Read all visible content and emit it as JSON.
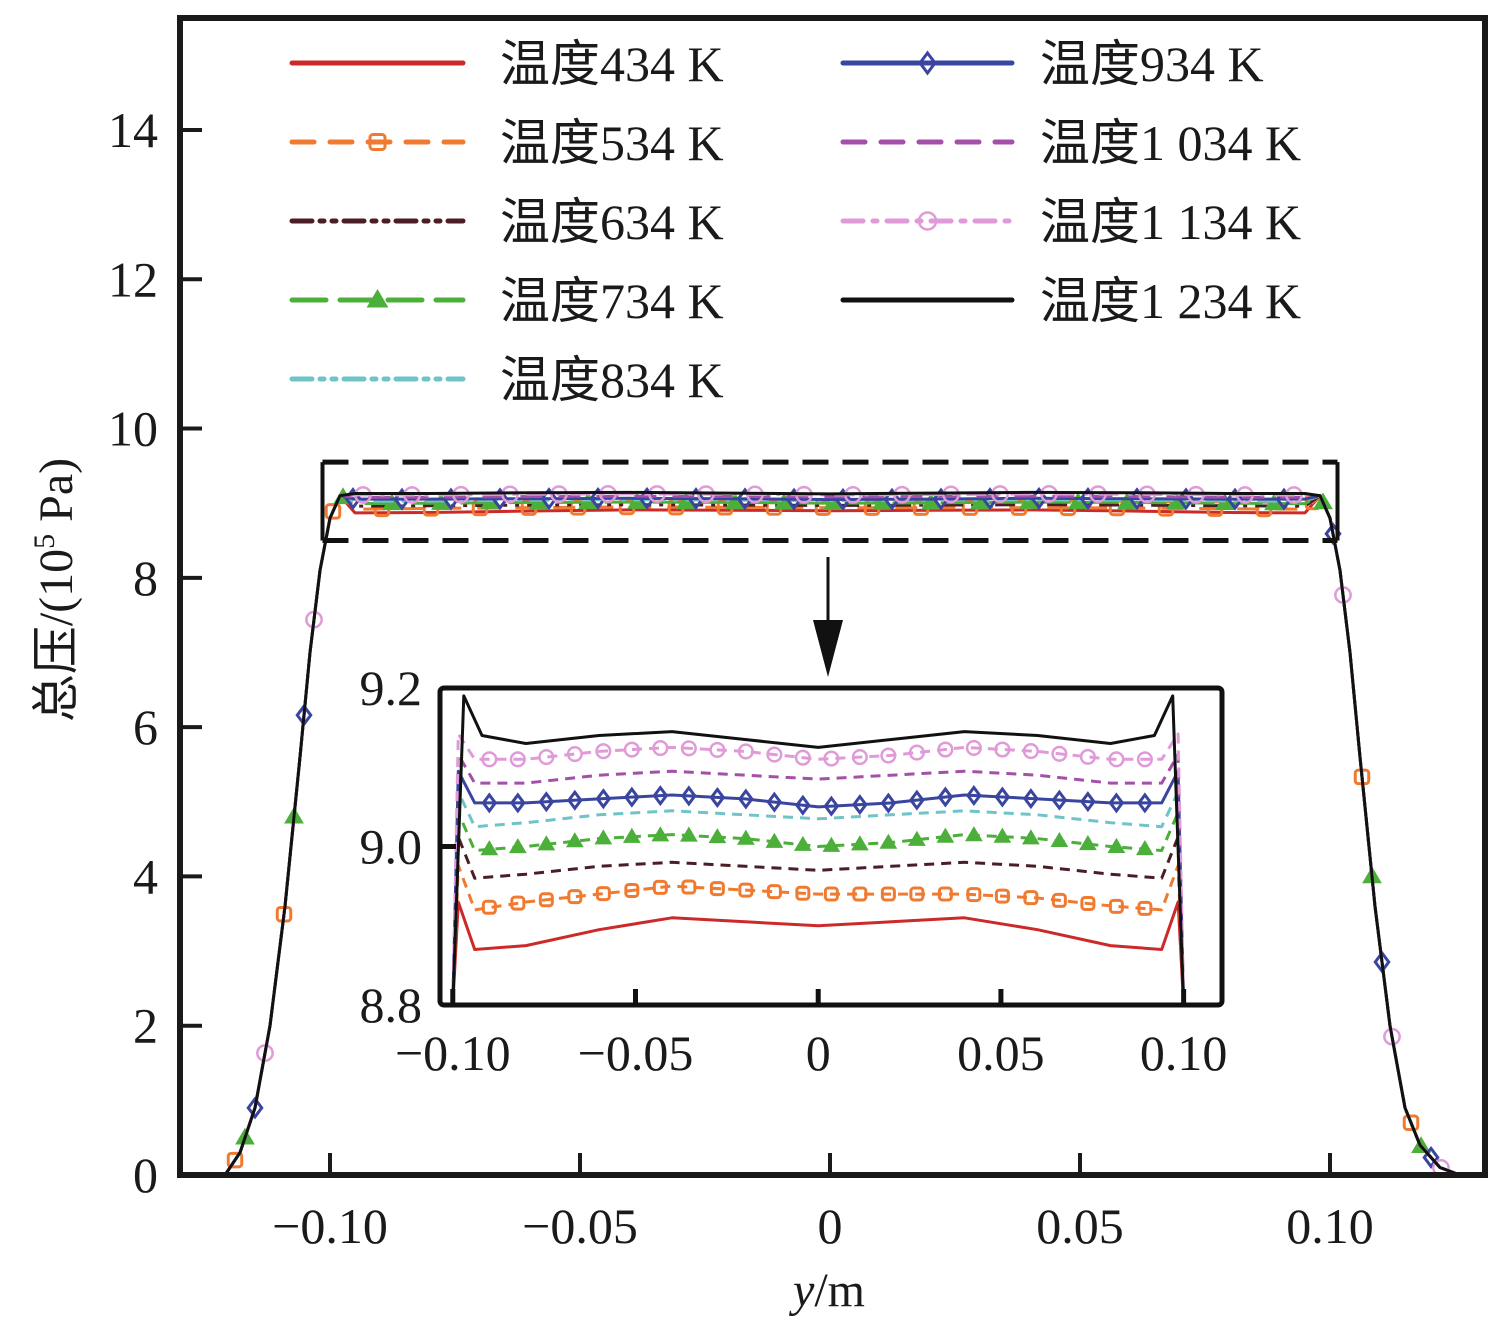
{
  "chart_data": {
    "type": "line",
    "title": "",
    "xlabel": "y/m",
    "xlabel_var": "y",
    "xlabel_unit": "/m",
    "ylabel": "总压/(10⁵ Pa)",
    "ylabel_prefix": "总压/(10",
    "ylabel_sup": "5",
    "ylabel_suffix": " Pa)",
    "xlim": [
      -0.13,
      0.131
    ],
    "ylim": [
      0,
      15.5
    ],
    "xticks": [
      -0.1,
      -0.05,
      0,
      0.05,
      0.1
    ],
    "xtick_labels": [
      "−0.10",
      "−0.05",
      "0",
      "0.05",
      "0.10"
    ],
    "yticks": [
      0,
      2,
      4,
      6,
      8,
      10,
      12,
      14
    ],
    "ytick_labels": [
      "0",
      "2",
      "4",
      "6",
      "8",
      "10",
      "12",
      "14"
    ],
    "grid": false,
    "legend_position": "top",
    "legend_columns": 2,
    "profile_shape": {
      "edge_x": [
        -0.121,
        -0.118,
        -0.115,
        -0.112,
        -0.109,
        -0.106,
        -0.104,
        -0.102,
        -0.1,
        -0.098
      ],
      "edge_y": [
        0.0,
        0.3,
        0.9,
        2.0,
        3.6,
        5.6,
        7.0,
        8.1,
        8.8,
        9.1
      ],
      "right_edge_x": [
        0.098,
        0.1,
        0.102,
        0.104,
        0.106,
        0.109,
        0.112,
        0.115,
        0.118,
        0.122,
        0.126
      ],
      "right_edge_y": [
        9.1,
        8.8,
        8.1,
        7.0,
        5.6,
        3.6,
        2.0,
        0.9,
        0.4,
        0.1,
        0.0
      ]
    },
    "series": [
      {
        "name": "温度434 K",
        "color": "#cc2a2a",
        "style": "solid",
        "marker": "none",
        "plateau_x": [
          -0.095,
          -0.08,
          -0.06,
          -0.04,
          -0.02,
          0,
          0.02,
          0.04,
          0.06,
          0.08,
          0.095
        ],
        "plateau_y": [
          8.87,
          8.875,
          8.895,
          8.91,
          8.905,
          8.9,
          8.905,
          8.91,
          8.895,
          8.875,
          8.87
        ]
      },
      {
        "name": "温度534 K",
        "color": "#f07a30",
        "style": "dash",
        "marker": "square-open",
        "plateau_x": [
          -0.095,
          -0.08,
          -0.06,
          -0.04,
          -0.02,
          0,
          0.02,
          0.04,
          0.06,
          0.08,
          0.095
        ],
        "plateau_y": [
          8.92,
          8.93,
          8.94,
          8.95,
          8.945,
          8.94,
          8.94,
          8.94,
          8.935,
          8.925,
          8.92
        ]
      },
      {
        "name": "温度634 K",
        "color": "#4a1e24",
        "style": "dashdotdot",
        "marker": "none",
        "plateau_x": [
          -0.095,
          -0.08,
          -0.06,
          -0.04,
          -0.02,
          0,
          0.02,
          0.04,
          0.06,
          0.08,
          0.095
        ],
        "plateau_y": [
          8.96,
          8.965,
          8.975,
          8.98,
          8.975,
          8.97,
          8.975,
          8.98,
          8.975,
          8.965,
          8.96
        ]
      },
      {
        "name": "温度734 K",
        "color": "#4caf3a",
        "style": "longdash",
        "marker": "triangle",
        "plateau_x": [
          -0.095,
          -0.08,
          -0.06,
          -0.04,
          -0.02,
          0,
          0.02,
          0.04,
          0.06,
          0.08,
          0.095
        ],
        "plateau_y": [
          8.995,
          9.0,
          9.01,
          9.015,
          9.01,
          9.0,
          9.005,
          9.015,
          9.01,
          9.0,
          8.995
        ]
      },
      {
        "name": "温度834 K",
        "color": "#6ec4c8",
        "style": "dashdotdot",
        "marker": "none",
        "plateau_x": [
          -0.095,
          -0.08,
          -0.06,
          -0.04,
          -0.02,
          0,
          0.02,
          0.04,
          0.06,
          0.08,
          0.095
        ],
        "plateau_y": [
          9.025,
          9.03,
          9.04,
          9.045,
          9.04,
          9.035,
          9.04,
          9.045,
          9.04,
          9.03,
          9.025
        ]
      },
      {
        "name": "温度934 K",
        "color": "#3a45a0",
        "style": "solid",
        "marker": "diamond-open",
        "plateau_x": [
          -0.095,
          -0.08,
          -0.06,
          -0.04,
          -0.02,
          0,
          0.02,
          0.04,
          0.06,
          0.08,
          0.095
        ],
        "plateau_y": [
          9.055,
          9.055,
          9.06,
          9.065,
          9.06,
          9.05,
          9.055,
          9.065,
          9.06,
          9.055,
          9.055
        ]
      },
      {
        "name": "温度1 034 K",
        "color": "#a450a8",
        "style": "dash",
        "marker": "none",
        "plateau_x": [
          -0.095,
          -0.08,
          -0.06,
          -0.04,
          -0.02,
          0,
          0.02,
          0.04,
          0.06,
          0.08,
          0.095
        ],
        "plateau_y": [
          9.08,
          9.08,
          9.09,
          9.095,
          9.09,
          9.085,
          9.09,
          9.095,
          9.09,
          9.08,
          9.08
        ]
      },
      {
        "name": "温度1 134 K",
        "color": "#e09ad8",
        "style": "dashdot",
        "marker": "circle-open",
        "plateau_x": [
          -0.095,
          -0.08,
          -0.06,
          -0.04,
          -0.02,
          0,
          0.02,
          0.04,
          0.06,
          0.08,
          0.095
        ],
        "plateau_y": [
          9.11,
          9.11,
          9.12,
          9.125,
          9.12,
          9.11,
          9.115,
          9.125,
          9.12,
          9.11,
          9.11
        ]
      },
      {
        "name": "温度1 234 K",
        "color": "#111111",
        "style": "solid",
        "marker": "none",
        "plateau_x": [
          -0.095,
          -0.08,
          -0.06,
          -0.04,
          -0.02,
          0,
          0.02,
          0.04,
          0.06,
          0.08,
          0.095
        ],
        "plateau_y": [
          9.13,
          9.13,
          9.14,
          9.145,
          9.135,
          9.125,
          9.135,
          9.145,
          9.14,
          9.13,
          9.13
        ]
      }
    ],
    "inset": {
      "xlim": [
        -0.1035,
        0.1105
      ],
      "ylim": [
        8.8,
        9.2
      ],
      "xticks": [
        -0.1,
        -0.05,
        0,
        0.05,
        0.1
      ],
      "xtick_labels": [
        "−0.10",
        "−0.05",
        "0",
        "0.05",
        "0.10"
      ],
      "yticks": [
        8.8,
        9.0,
        9.2
      ],
      "ytick_labels": [
        "8.8",
        "9.0",
        "9.2"
      ],
      "edge_peak_x": 0.097,
      "edge_peak_y": 9.19
    },
    "zoom_box": {
      "x": [
        -0.1015,
        0.1015
      ],
      "y": [
        8.5,
        9.55
      ]
    },
    "annotation": "arrow from zoom box down to inset"
  }
}
